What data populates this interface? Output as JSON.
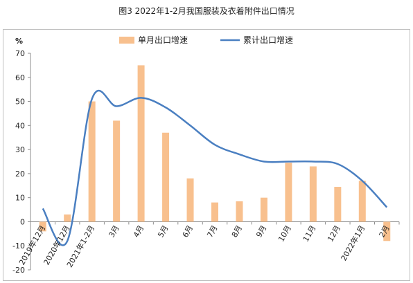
{
  "title": "图3 2022年1-2月我国服装及衣着附件出口情况",
  "chart_data": {
    "type": "bar+line",
    "categories": [
      "2019年12月",
      "2020年12月",
      "2021年1-2月",
      "3月",
      "4月",
      "5月",
      "6月",
      "7月",
      "8月",
      "9月",
      "10月",
      "11月",
      "12月",
      "2022年1月",
      "2月"
    ],
    "series": [
      {
        "name": "单月出口增速",
        "type": "bar",
        "color": "#f8c08e",
        "values": [
          -4,
          3,
          50,
          42,
          65,
          37,
          18,
          8,
          8.5,
          10,
          24.5,
          23,
          14.5,
          17,
          -8
        ]
      },
      {
        "name": "累计出口增速",
        "type": "line",
        "color": "#4a7fc1",
        "values": [
          5.5,
          -8,
          51,
          48,
          51.5,
          47.5,
          40,
          32,
          28,
          25,
          25,
          25,
          24,
          17,
          6
        ]
      }
    ],
    "ylabel": "%",
    "ylim": [
      -20,
      70
    ],
    "yticks": [
      -20,
      -10,
      0,
      10,
      20,
      30,
      40,
      50,
      60,
      70
    ],
    "legend": "top-center"
  }
}
